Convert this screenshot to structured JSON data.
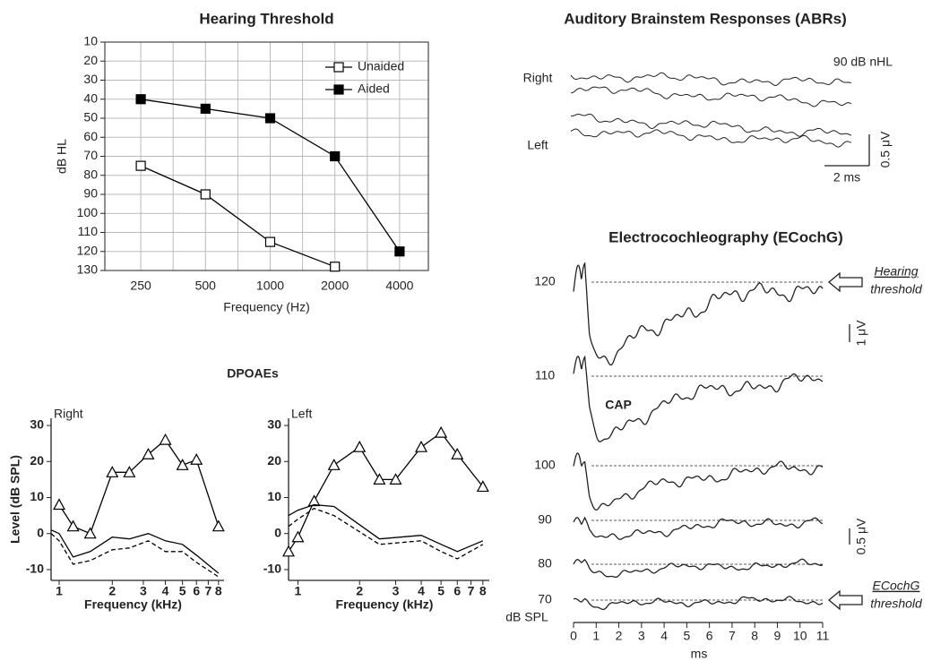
{
  "chart_data": [
    {
      "type": "line",
      "title": "Hearing Threshold",
      "xlabel": "Frequency (Hz)",
      "ylabel": "dB HL",
      "categories": [
        "250",
        "500",
        "1000",
        "2000",
        "4000"
      ],
      "ylim": [
        130,
        10
      ],
      "yticks": [
        10,
        20,
        30,
        40,
        50,
        60,
        70,
        80,
        90,
        100,
        110,
        120,
        130
      ],
      "grid": true,
      "legend": "top-right",
      "series": [
        {
          "name": "Unaided",
          "color": "#000000",
          "marker": "square-open",
          "values": [
            75,
            90,
            115,
            128,
            null
          ]
        },
        {
          "name": "Aided",
          "color": "#000000",
          "marker": "square-filled",
          "values": [
            40,
            45,
            50,
            70,
            120
          ]
        }
      ]
    },
    {
      "type": "line",
      "title": "DPOAEs",
      "subtitle": "Right",
      "xlabel": "Frequency (kHz)",
      "ylabel": "Level (dB SPL)",
      "xscale": "log",
      "xlim": [
        0.9,
        8.6
      ],
      "xticks": [
        1,
        2,
        3,
        4,
        5,
        6,
        7,
        8
      ],
      "ylim": [
        -13,
        32
      ],
      "yticks": [
        -10,
        0,
        10,
        20,
        30
      ],
      "series": [
        {
          "color": "#000000",
          "marker": "triangle-open",
          "dash": false,
          "x": [
            1.0,
            1.2,
            1.5,
            2.0,
            2.5,
            3.2,
            4.0,
            5.0,
            6.0,
            8.0
          ],
          "values": [
            8,
            2,
            0,
            17,
            17,
            22,
            26,
            19,
            20.5,
            2
          ]
        },
        {
          "color": "#000000",
          "dash": false,
          "x": [
            0.9,
            1.0,
            1.2,
            1.5,
            2.0,
            2.5,
            3.2,
            4.0,
            5.0,
            6.0,
            8.0
          ],
          "values": [
            1,
            0,
            -6.5,
            -5,
            -1,
            -1.5,
            0,
            -2,
            -3,
            -6,
            -11
          ]
        },
        {
          "color": "#000000",
          "dash": true,
          "x": [
            0.9,
            1.0,
            1.2,
            1.5,
            2.0,
            2.5,
            3.2,
            4.0,
            5.0,
            6.0,
            8.0
          ],
          "values": [
            0,
            -2,
            -8.5,
            -7.5,
            -4.5,
            -4,
            -2,
            -5,
            -5,
            -8,
            -12
          ]
        }
      ]
    },
    {
      "type": "line",
      "subtitle": "Left",
      "xlabel": "Frequency (kHz)",
      "xscale": "log",
      "xlim": [
        0.9,
        8.6
      ],
      "xticks": [
        1,
        2,
        3,
        4,
        5,
        6,
        7,
        8
      ],
      "ylim": [
        -13,
        32
      ],
      "yticks": [
        -10,
        0,
        10,
        20,
        30
      ],
      "series": [
        {
          "color": "#000000",
          "marker": "triangle-open",
          "dash": false,
          "x": [
            0.9,
            1.0,
            1.2,
            1.5,
            2.0,
            2.5,
            3.0,
            4.0,
            5.0,
            6.0,
            8.0
          ],
          "values": [
            -5,
            -1,
            9,
            19,
            24,
            15,
            15,
            24,
            28,
            22,
            13
          ]
        },
        {
          "color": "#000000",
          "dash": false,
          "x": [
            0.9,
            1.0,
            1.2,
            1.5,
            2.5,
            4.0,
            5.0,
            6.0,
            8.0
          ],
          "values": [
            5,
            6.5,
            8,
            7.5,
            -1.5,
            -0.5,
            -3,
            -5,
            -2
          ]
        },
        {
          "color": "#000000",
          "dash": true,
          "x": [
            0.9,
            1.0,
            1.2,
            1.5,
            2.5,
            4.0,
            5.0,
            6.0,
            8.0
          ],
          "values": [
            2,
            4,
            7,
            5,
            -3,
            -2,
            -5,
            -7,
            -3
          ]
        }
      ]
    },
    {
      "type": "waveform",
      "title": "Auditory Brainstem Responses (ABRs)",
      "trace_labels": [
        "Right",
        "Left"
      ],
      "stimulus": "90 dB nHL",
      "scale_x": "2 ms",
      "scale_y": "0.5 μV"
    },
    {
      "type": "waveform",
      "title": "Electrocochleography (ECochG)",
      "ylabel": "dB SPL",
      "xlabel": "ms",
      "xlim": [
        0,
        11
      ],
      "xticks": [
        0,
        1,
        2,
        3,
        4,
        5,
        6,
        7,
        8,
        9,
        10,
        11
      ],
      "levels": [
        120,
        110,
        100,
        90,
        80,
        70
      ],
      "annotation": "CAP",
      "hearing_threshold": [
        "Hearing",
        "threshold"
      ],
      "ecochg_threshold": [
        "ECochG",
        "threshold"
      ],
      "scale_labels": [
        "1 μV",
        "0.5 μV"
      ]
    }
  ]
}
